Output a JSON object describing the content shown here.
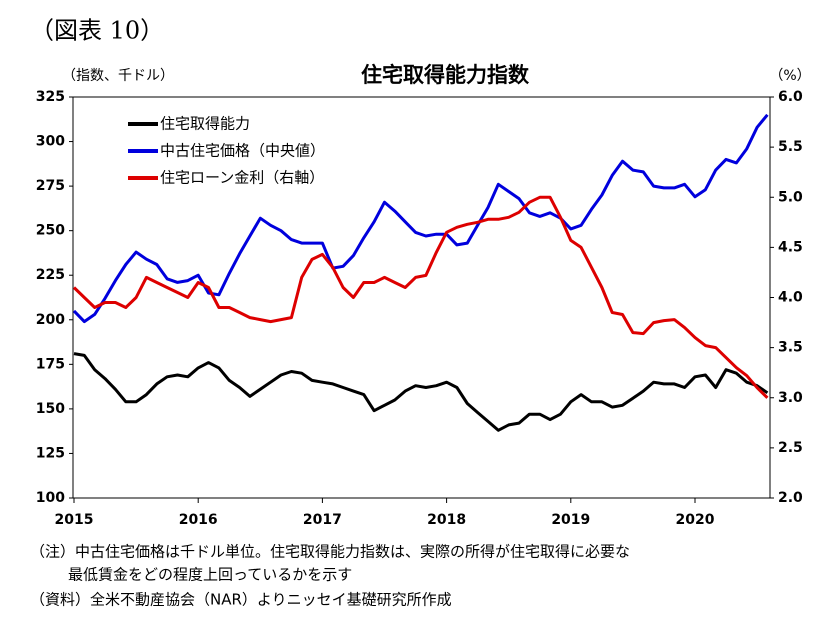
{
  "figure_label": "（図表 10）",
  "notes": [
    "（注）中古住宅価格は千ドル単位。住宅取得能力指数は、実際の所得が住宅取得に必要な",
    "最低賃金をどの程度上回っているかを示す",
    "（資料）全米不動産協会（NAR）よりニッセイ基礎研究所作成"
  ],
  "chart_data": {
    "type": "line",
    "title": "住宅取得能力指数",
    "y_label": "（指数、千ドル）",
    "y2_label": "（%）",
    "categories": [
      "2015",
      null,
      null,
      null,
      null,
      null,
      null,
      null,
      null,
      null,
      null,
      null,
      "2016",
      null,
      null,
      null,
      null,
      null,
      null,
      null,
      null,
      null,
      null,
      null,
      "2017",
      null,
      null,
      null,
      null,
      null,
      null,
      null,
      null,
      null,
      null,
      null,
      "2018",
      null,
      null,
      null,
      null,
      null,
      null,
      null,
      null,
      null,
      null,
      null,
      "2019",
      null,
      null,
      null,
      null,
      null,
      null,
      null,
      null,
      null,
      null,
      null,
      "2020",
      null,
      null,
      null,
      null,
      null,
      null,
      null
    ],
    "ylim": [
      100,
      325
    ],
    "yticks": [
      100,
      125,
      150,
      175,
      200,
      225,
      250,
      275,
      300,
      325
    ],
    "y2lim": [
      2,
      6
    ],
    "y2ticks": [
      {
        "value": 2,
        "label": "2.0"
      },
      {
        "value": 2.5,
        "label": "2.5"
      },
      {
        "value": 3,
        "label": "3.0"
      },
      {
        "value": 3.5,
        "label": "3.5"
      },
      {
        "value": 4,
        "label": "4.0"
      },
      {
        "value": 4.5,
        "label": "4.5"
      },
      {
        "value": 5,
        "label": "5.0"
      },
      {
        "value": 5.5,
        "label": "5.5"
      },
      {
        "value": 6,
        "label": "6.0"
      }
    ],
    "grid": false,
    "legend": "upper left",
    "series": [
      {
        "name": "住宅取得能力",
        "color": "#000000",
        "values": [
          181,
          180,
          172,
          167,
          161,
          154,
          154,
          158,
          164,
          168,
          169,
          168,
          173,
          176,
          173,
          166,
          162,
          157,
          161,
          165,
          169,
          171,
          170,
          166,
          165,
          164,
          162,
          160,
          158,
          149,
          152,
          155,
          160,
          163,
          162,
          163,
          165,
          162,
          153,
          148,
          143,
          138,
          141,
          142,
          147,
          147,
          144,
          147,
          154,
          158,
          154,
          154,
          151,
          152,
          156,
          160,
          165,
          164,
          164,
          162,
          168,
          169,
          162,
          172,
          170,
          165,
          163,
          159
        ]
      },
      {
        "name": "中古住宅価格（中央値）",
        "color": "#0000dd",
        "values": [
          205,
          199,
          203,
          212,
          222,
          231,
          238,
          234,
          231,
          223,
          221,
          222,
          225,
          215,
          214,
          226,
          237,
          247,
          257,
          253,
          250,
          245,
          243,
          243,
          243,
          229,
          230,
          236,
          246,
          255,
          266,
          261,
          255,
          249,
          247,
          248,
          248,
          242,
          243,
          253,
          263,
          276,
          272,
          268,
          260,
          258,
          260,
          257,
          251,
          253,
          262,
          270,
          281,
          289,
          284,
          283,
          275,
          274,
          274,
          276,
          269,
          273,
          284,
          290,
          288,
          296,
          308,
          315
        ]
      },
      {
        "name": "住宅ローン金利（右軸）",
        "color": "#dd0000",
        "axis": "y2",
        "values": [
          4.1,
          4.0,
          3.9,
          3.95,
          3.95,
          3.9,
          4.0,
          4.2,
          4.15,
          4.1,
          4.05,
          4.0,
          4.15,
          4.1,
          3.9,
          3.9,
          3.85,
          3.8,
          3.78,
          3.76,
          3.78,
          3.8,
          4.2,
          4.38,
          4.43,
          4.3,
          4.1,
          4.0,
          4.15,
          4.15,
          4.2,
          4.15,
          4.1,
          4.2,
          4.22,
          4.45,
          4.65,
          4.7,
          4.73,
          4.75,
          4.78,
          4.78,
          4.8,
          4.85,
          4.95,
          5.0,
          5.0,
          4.8,
          4.57,
          4.5,
          4.3,
          4.1,
          3.85,
          3.83,
          3.65,
          3.64,
          3.75,
          3.77,
          3.78,
          3.7,
          3.6,
          3.52,
          3.5,
          3.4,
          3.3,
          3.22,
          3.1,
          3.0
        ]
      }
    ]
  }
}
